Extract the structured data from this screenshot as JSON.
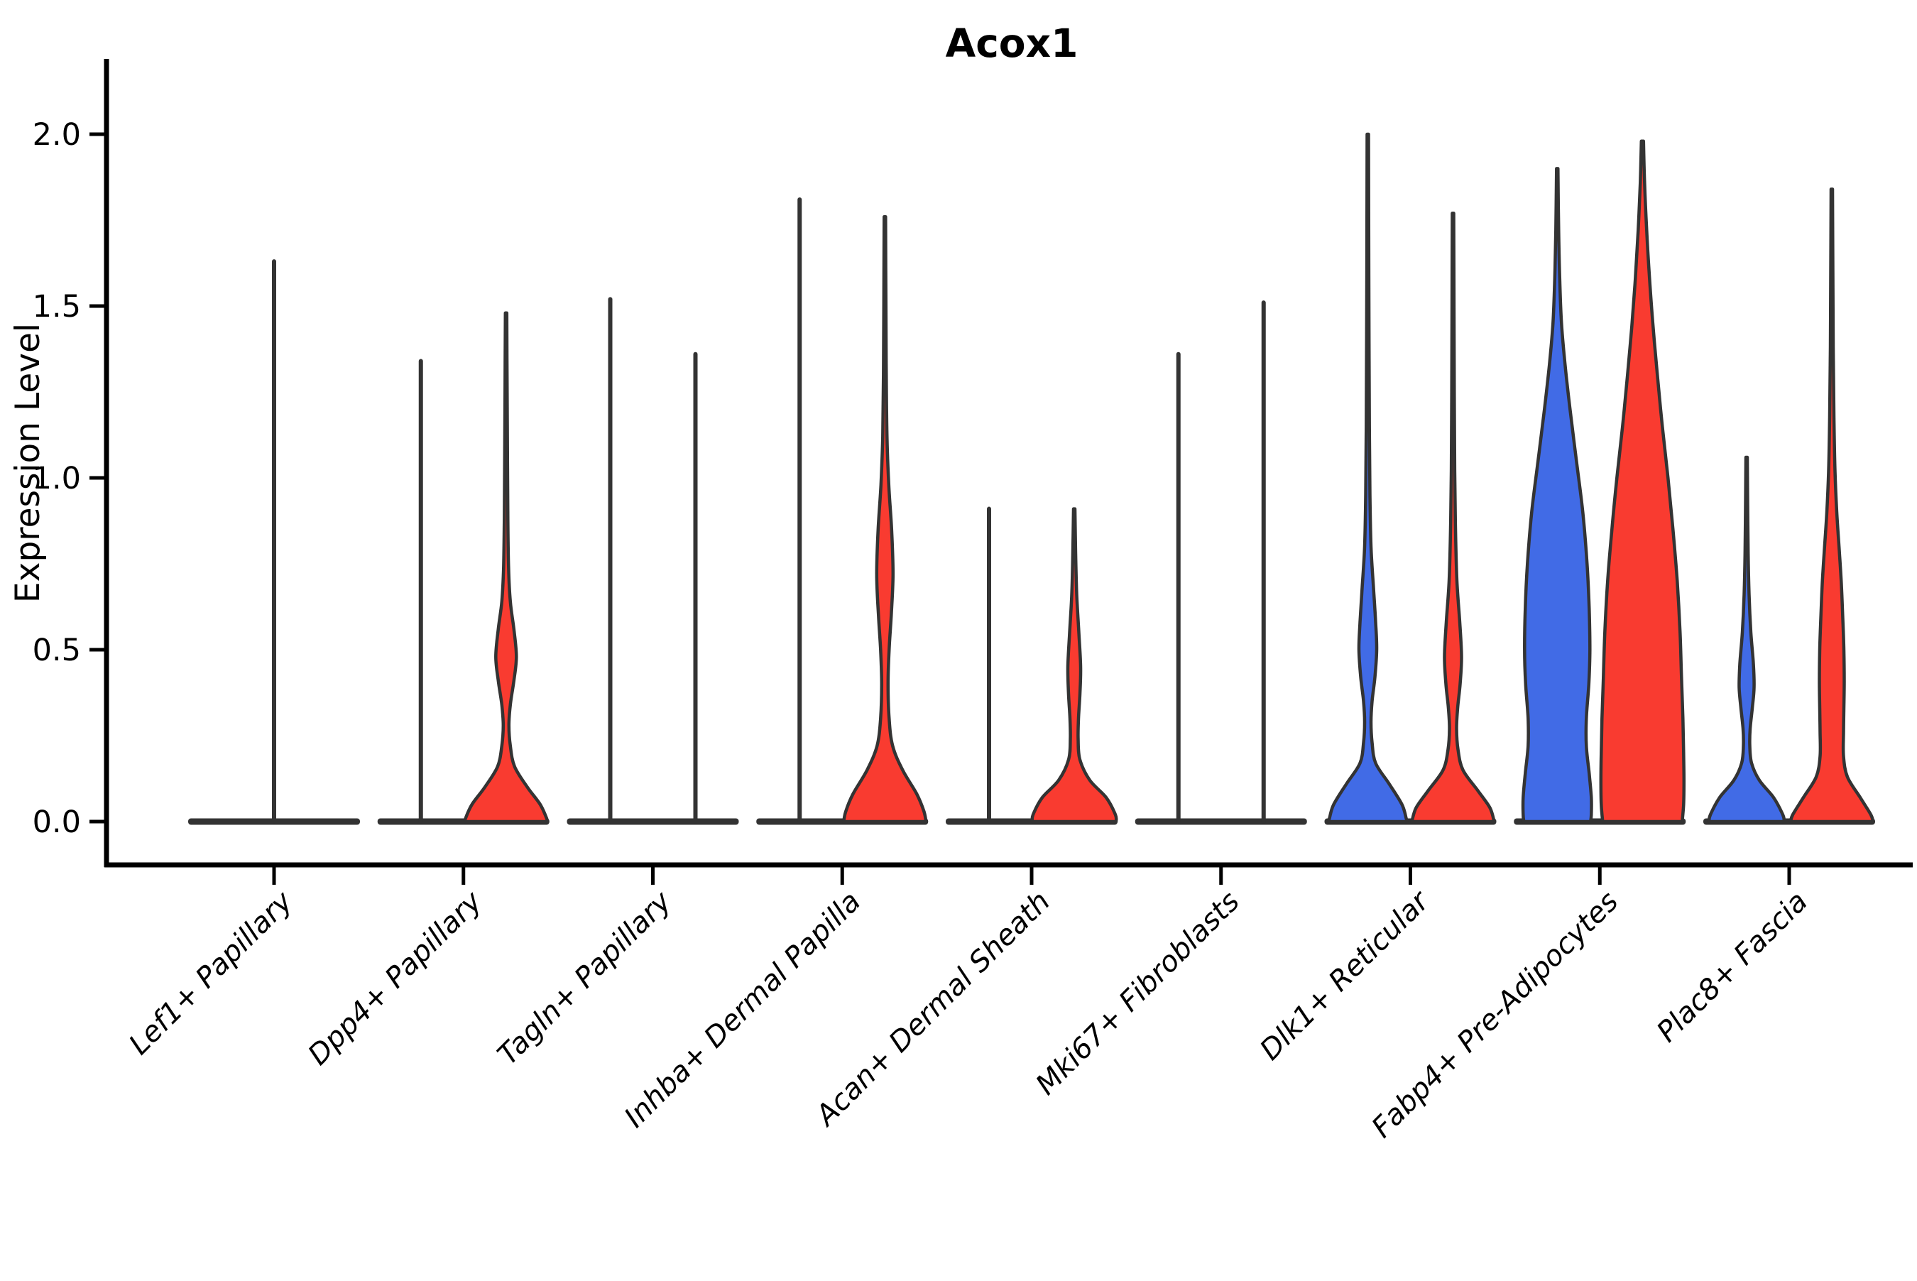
{
  "chart_data": {
    "type": "violin",
    "title": "Acox1",
    "ylabel": "Expression Level",
    "xlabel": "",
    "ylim": [
      0,
      2.0
    ],
    "yticks": [
      {
        "value": 0.0,
        "label": "0.0"
      },
      {
        "value": 0.5,
        "label": "0.5"
      },
      {
        "value": 1.0,
        "label": "1.0"
      },
      {
        "value": 1.5,
        "label": "1.5"
      },
      {
        "value": 2.0,
        "label": "2.0"
      }
    ],
    "legend": "none",
    "grid": false,
    "categories": [
      "Lef1+ Papillary",
      "Dpp4+ Papillary",
      "Tagln+ Papillary",
      "Inhba+ Dermal Papilla",
      "Acan+ Dermal Sheath",
      "Mki67+ Fibroblasts",
      "Dlk1+ Reticular",
      "Fabp4+ Pre-Adipocytes",
      "Plac8+ Fascia"
    ],
    "series_note": "each category shows a left (blue) and right (red) violin; violins that are almost all zeros collapse to a flat bar at 0 with a thin spike to the max value",
    "groups": [
      {
        "category": "Lef1+ Papillary",
        "violins": [
          {
            "pos": "center",
            "fill": "none",
            "max_expression": 1.63,
            "profile": null
          }
        ]
      },
      {
        "category": "Dpp4+ Papillary",
        "violins": [
          {
            "pos": "left",
            "fill": "none",
            "max_expression": 1.34,
            "profile": null
          },
          {
            "pos": "right",
            "fill": "red",
            "max_expression": 1.48,
            "profile": [
              [
                1.48,
                1
              ],
              [
                1.25,
                1.5
              ],
              [
                1.05,
                2
              ],
              [
                0.88,
                2.5
              ],
              [
                0.74,
                3.5
              ],
              [
                0.64,
                6
              ],
              [
                0.56,
                11
              ],
              [
                0.48,
                14.5
              ],
              [
                0.41,
                11
              ],
              [
                0.34,
                6
              ],
              [
                0.28,
                4
              ],
              [
                0.22,
                6
              ],
              [
                0.16,
                12
              ],
              [
                0.1,
                30
              ],
              [
                0.05,
                48
              ],
              [
                0.01,
                57
              ],
              [
                0,
                58
              ]
            ]
          }
        ]
      },
      {
        "category": "Tagln+ Papillary",
        "violins": [
          {
            "pos": "left",
            "fill": "none",
            "max_expression": 1.52,
            "profile": null
          },
          {
            "pos": "right",
            "fill": "none",
            "max_expression": 1.36,
            "profile": null
          }
        ]
      },
      {
        "category": "Inhba+ Dermal Papilla",
        "violins": [
          {
            "pos": "left",
            "fill": "none",
            "max_expression": 1.81,
            "profile": null
          },
          {
            "pos": "right",
            "fill": "red",
            "max_expression": 1.76,
            "profile": [
              [
                1.76,
                1
              ],
              [
                1.5,
                1.5
              ],
              [
                1.3,
                2
              ],
              [
                1.12,
                3
              ],
              [
                0.98,
                5.5
              ],
              [
                0.85,
                9.5
              ],
              [
                0.72,
                11.5
              ],
              [
                0.6,
                9
              ],
              [
                0.5,
                6
              ],
              [
                0.4,
                4.5
              ],
              [
                0.3,
                6
              ],
              [
                0.22,
                11
              ],
              [
                0.15,
                25
              ],
              [
                0.08,
                45
              ],
              [
                0.03,
                55
              ],
              [
                0,
                58
              ]
            ]
          }
        ]
      },
      {
        "category": "Acan+ Dermal Sheath",
        "violins": [
          {
            "pos": "left",
            "fill": "none",
            "max_expression": 0.91,
            "profile": null
          },
          {
            "pos": "right",
            "fill": "red",
            "max_expression": 0.91,
            "profile": [
              [
                0.91,
                1
              ],
              [
                0.78,
                2
              ],
              [
                0.66,
                3.5
              ],
              [
                0.55,
                6.5
              ],
              [
                0.45,
                9
              ],
              [
                0.37,
                8
              ],
              [
                0.3,
                6
              ],
              [
                0.24,
                5.5
              ],
              [
                0.18,
                8
              ],
              [
                0.12,
                22
              ],
              [
                0.07,
                45
              ],
              [
                0.02,
                58
              ],
              [
                0,
                59
              ]
            ]
          }
        ]
      },
      {
        "category": "Mki67+ Fibroblasts",
        "violins": [
          {
            "pos": "left",
            "fill": "none",
            "max_expression": 1.36,
            "profile": null
          },
          {
            "pos": "right",
            "fill": "none",
            "max_expression": 1.51,
            "profile": null
          }
        ]
      },
      {
        "category": "Dlk1+ Reticular",
        "violins": [
          {
            "pos": "left",
            "fill": "blue",
            "max_expression": 2.0,
            "profile": [
              [
                2.0,
                1
              ],
              [
                1.7,
                1.3
              ],
              [
                1.4,
                1.7
              ],
              [
                1.15,
                2.2
              ],
              [
                0.95,
                3
              ],
              [
                0.8,
                4.5
              ],
              [
                0.68,
                8
              ],
              [
                0.58,
                11
              ],
              [
                0.5,
                12.5
              ],
              [
                0.42,
                10
              ],
              [
                0.35,
                6
              ],
              [
                0.29,
                4.5
              ],
              [
                0.23,
                6
              ],
              [
                0.17,
                11
              ],
              [
                0.11,
                30
              ],
              [
                0.05,
                48
              ],
              [
                0.01,
                54
              ],
              [
                0,
                55
              ]
            ]
          },
          {
            "pos": "right",
            "fill": "red",
            "max_expression": 1.77,
            "profile": [
              [
                1.77,
                1
              ],
              [
                1.5,
                1.4
              ],
              [
                1.25,
                1.8
              ],
              [
                1.02,
                2.4
              ],
              [
                0.85,
                3.5
              ],
              [
                0.7,
                5.5
              ],
              [
                0.58,
                9.5
              ],
              [
                0.48,
                12
              ],
              [
                0.4,
                10
              ],
              [
                0.33,
                6.5
              ],
              [
                0.27,
                5
              ],
              [
                0.21,
                7
              ],
              [
                0.15,
                14
              ],
              [
                0.09,
                35
              ],
              [
                0.04,
                52
              ],
              [
                0,
                58
              ]
            ]
          }
        ]
      },
      {
        "category": "Fabp4+ Pre-Adipocytes",
        "violins": [
          {
            "pos": "left",
            "fill": "blue",
            "max_expression": 1.9,
            "profile": [
              [
                1.9,
                1
              ],
              [
                1.72,
                2
              ],
              [
                1.58,
                3.5
              ],
              [
                1.45,
                6
              ],
              [
                1.33,
                11
              ],
              [
                1.2,
                18
              ],
              [
                1.05,
                27
              ],
              [
                0.9,
                36
              ],
              [
                0.75,
                42
              ],
              [
                0.62,
                45
              ],
              [
                0.5,
                46
              ],
              [
                0.4,
                44.5
              ],
              [
                0.3,
                41
              ],
              [
                0.22,
                41
              ],
              [
                0.14,
                45
              ],
              [
                0.07,
                48
              ],
              [
                0.02,
                48
              ],
              [
                0,
                47
              ]
            ]
          },
          {
            "pos": "right",
            "fill": "red",
            "max_expression": 1.98,
            "profile": [
              [
                1.98,
                1.5
              ],
              [
                1.86,
                3
              ],
              [
                1.72,
                6
              ],
              [
                1.58,
                10
              ],
              [
                1.44,
                15
              ],
              [
                1.3,
                21
              ],
              [
                1.15,
                28
              ],
              [
                1.0,
                36
              ],
              [
                0.85,
                43
              ],
              [
                0.7,
                49
              ],
              [
                0.55,
                53
              ],
              [
                0.42,
                55
              ],
              [
                0.3,
                57
              ],
              [
                0.2,
                58
              ],
              [
                0.12,
                58.5
              ],
              [
                0.05,
                58
              ],
              [
                0,
                56
              ]
            ]
          }
        ]
      },
      {
        "category": "Plac8+ Fascia",
        "violins": [
          {
            "pos": "left",
            "fill": "blue",
            "max_expression": 1.06,
            "profile": [
              [
                1.06,
                1
              ],
              [
                0.92,
                1.5
              ],
              [
                0.78,
                2.2
              ],
              [
                0.66,
                3.5
              ],
              [
                0.55,
                6
              ],
              [
                0.46,
                9.5
              ],
              [
                0.39,
                10.5
              ],
              [
                0.33,
                8
              ],
              [
                0.27,
                5
              ],
              [
                0.22,
                4.5
              ],
              [
                0.17,
                7
              ],
              [
                0.12,
                18
              ],
              [
                0.07,
                38
              ],
              [
                0.02,
                51
              ],
              [
                0,
                53
              ]
            ]
          },
          {
            "pos": "right",
            "fill": "red",
            "max_expression": 1.84,
            "profile": [
              [
                1.84,
                1
              ],
              [
                1.6,
                1.5
              ],
              [
                1.38,
                2
              ],
              [
                1.18,
                3
              ],
              [
                1.02,
                4.5
              ],
              [
                0.9,
                7
              ],
              [
                0.79,
                10.5
              ],
              [
                0.69,
                13.5
              ],
              [
                0.59,
                15.5
              ],
              [
                0.5,
                17
              ],
              [
                0.41,
                17.5
              ],
              [
                0.33,
                17
              ],
              [
                0.26,
                16.5
              ],
              [
                0.19,
                16.5
              ],
              [
                0.13,
                22
              ],
              [
                0.07,
                40
              ],
              [
                0.02,
                55
              ],
              [
                0,
                58
              ]
            ]
          }
        ]
      }
    ]
  },
  "colors": {
    "red_fill": "#f93b30",
    "blue_fill": "#416be6",
    "violin_outline": "#333333",
    "baseline_bar": "#333333",
    "axis": "#000000",
    "background": "#ffffff"
  }
}
